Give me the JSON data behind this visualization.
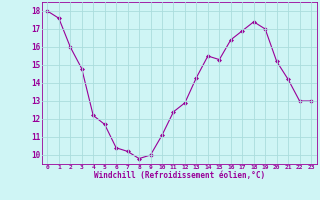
{
  "x": [
    0,
    1,
    2,
    3,
    4,
    5,
    6,
    7,
    8,
    9,
    10,
    11,
    12,
    13,
    14,
    15,
    16,
    17,
    18,
    19,
    20,
    21,
    22,
    23
  ],
  "y": [
    18.0,
    17.6,
    16.0,
    14.8,
    12.2,
    11.7,
    10.4,
    10.2,
    9.8,
    10.0,
    11.1,
    12.4,
    12.9,
    14.3,
    15.5,
    15.3,
    16.4,
    16.9,
    17.4,
    17.0,
    15.2,
    14.2,
    13.0,
    13.0
  ],
  "line_color": "#990099",
  "marker": "D",
  "marker_size": 2,
  "bg_color": "#cff5f5",
  "grid_color": "#aadddd",
  "xlabel": "Windchill (Refroidissement éolien,°C)",
  "tick_color": "#990099",
  "ylim": [
    9.5,
    18.5
  ],
  "xlim": [
    -0.5,
    23.5
  ],
  "yticks": [
    10,
    11,
    12,
    13,
    14,
    15,
    16,
    17,
    18
  ],
  "xticks": [
    0,
    1,
    2,
    3,
    4,
    5,
    6,
    7,
    8,
    9,
    10,
    11,
    12,
    13,
    14,
    15,
    16,
    17,
    18,
    19,
    20,
    21,
    22,
    23
  ]
}
